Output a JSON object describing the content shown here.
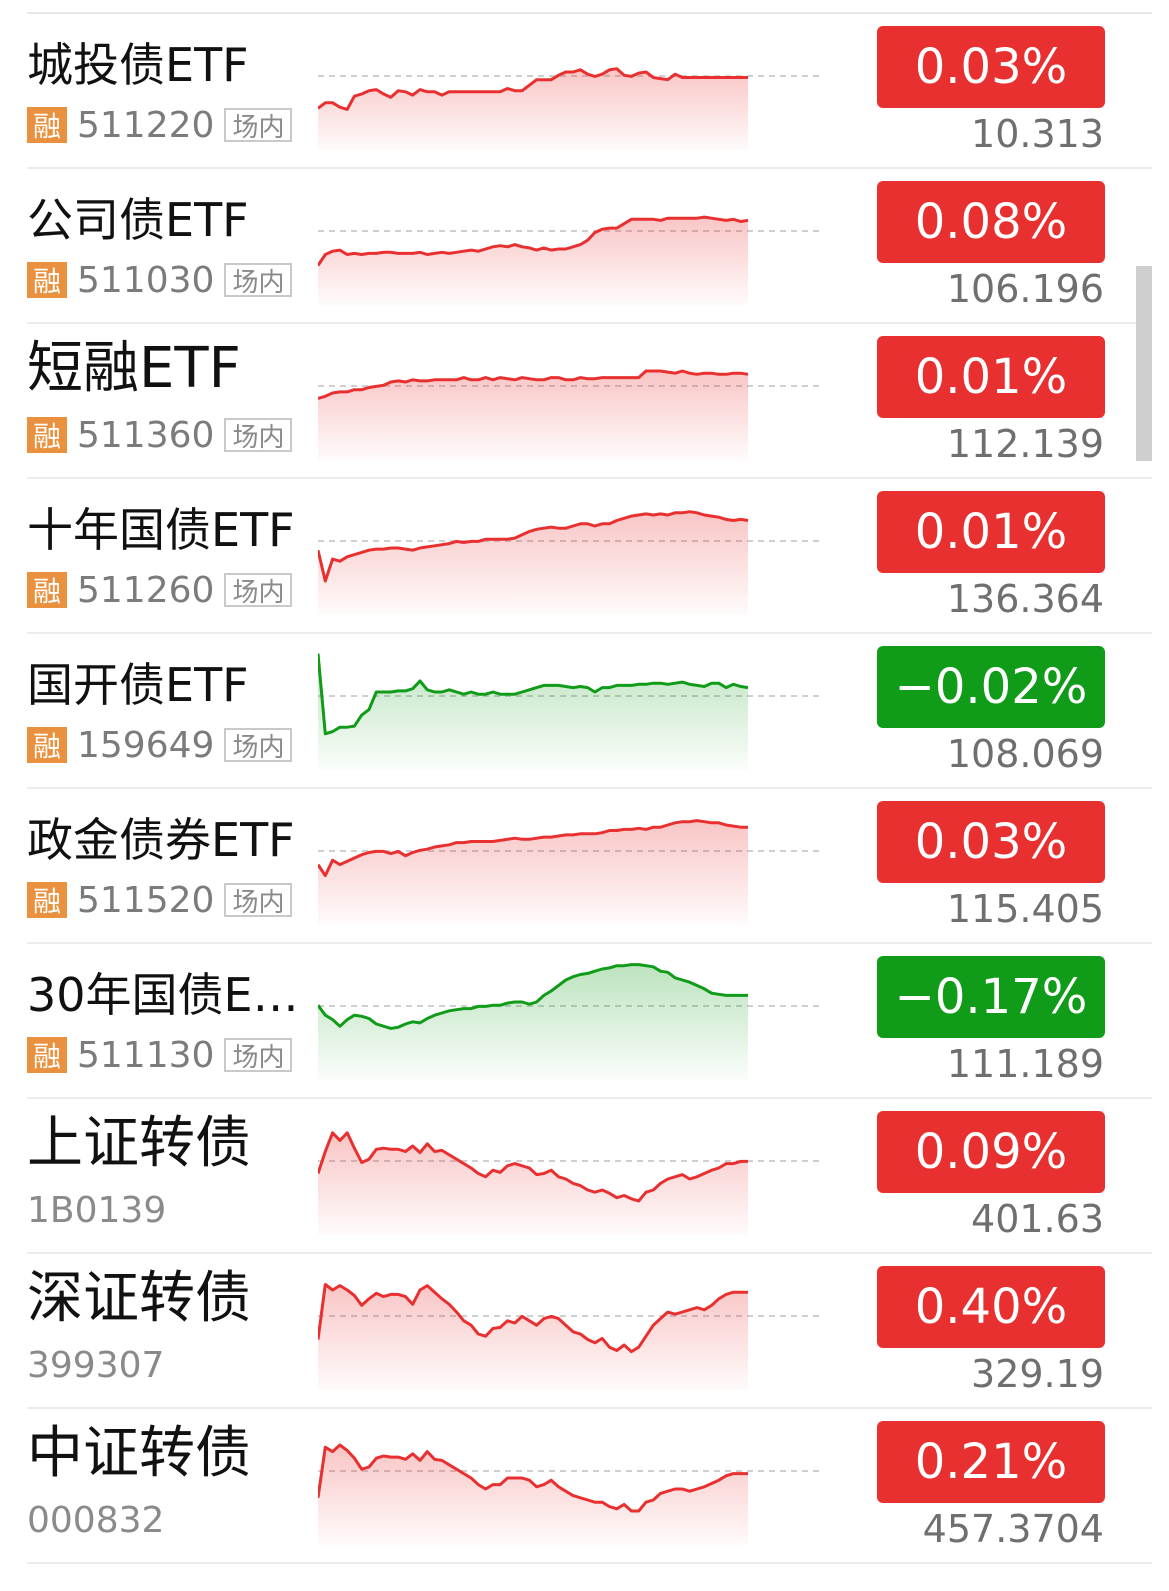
{
  "colors": {
    "up": "#e93030",
    "down": "#109b18",
    "rong_badge": "#e9913f"
  },
  "rows": [
    {
      "name": "城投债ETF",
      "margin_tag": "融",
      "code": "511220",
      "venue": "场内",
      "change": "0.03%",
      "price": "10.313",
      "trend": "up",
      "spark": [
        0.73,
        0.68,
        0.68,
        0.72,
        0.74,
        0.62,
        0.6,
        0.57,
        0.56,
        0.6,
        0.63,
        0.57,
        0.58,
        0.61,
        0.56,
        0.58,
        0.58,
        0.61,
        0.58,
        0.58,
        0.58,
        0.58,
        0.58,
        0.58,
        0.58,
        0.58,
        0.55,
        0.57,
        0.57,
        0.52,
        0.47,
        0.47,
        0.47,
        0.43,
        0.4,
        0.4,
        0.38,
        0.42,
        0.44,
        0.42,
        0.38,
        0.37,
        0.43,
        0.44,
        0.41,
        0.4,
        0.45,
        0.46,
        0.47,
        0.42,
        0.45,
        0.45,
        0.45,
        0.45,
        0.45,
        0.45,
        0.45,
        0.45,
        0.45,
        0.45
      ]
    },
    {
      "name": "公司债ETF",
      "margin_tag": "融",
      "code": "511030",
      "venue": "场内",
      "change": "0.08%",
      "price": "106.196",
      "trend": "up",
      "spark": [
        0.75,
        0.65,
        0.62,
        0.61,
        0.65,
        0.64,
        0.65,
        0.64,
        0.64,
        0.63,
        0.63,
        0.64,
        0.64,
        0.64,
        0.63,
        0.65,
        0.64,
        0.63,
        0.64,
        0.63,
        0.62,
        0.61,
        0.62,
        0.6,
        0.58,
        0.57,
        0.58,
        0.56,
        0.58,
        0.59,
        0.61,
        0.59,
        0.61,
        0.6,
        0.6,
        0.58,
        0.56,
        0.52,
        0.45,
        0.42,
        0.41,
        0.41,
        0.37,
        0.33,
        0.33,
        0.33,
        0.33,
        0.34,
        0.32,
        0.32,
        0.32,
        0.32,
        0.32,
        0.31,
        0.32,
        0.33,
        0.34,
        0.33,
        0.35,
        0.34
      ]
    },
    {
      "name": "短融ETF",
      "margin_tag": "融",
      "code": "511360",
      "venue": "场内",
      "change": "0.01%",
      "price": "112.139",
      "trend": "up",
      "spark": [
        0.55,
        0.53,
        0.5,
        0.49,
        0.49,
        0.47,
        0.47,
        0.45,
        0.44,
        0.43,
        0.4,
        0.39,
        0.4,
        0.38,
        0.39,
        0.39,
        0.38,
        0.38,
        0.38,
        0.38,
        0.36,
        0.38,
        0.38,
        0.36,
        0.38,
        0.36,
        0.37,
        0.38,
        0.36,
        0.37,
        0.38,
        0.38,
        0.36,
        0.36,
        0.38,
        0.38,
        0.36,
        0.37,
        0.37,
        0.36,
        0.36,
        0.36,
        0.36,
        0.36,
        0.36,
        0.3,
        0.3,
        0.3,
        0.31,
        0.32,
        0.3,
        0.32,
        0.33,
        0.32,
        0.32,
        0.33,
        0.33,
        0.32,
        0.32,
        0.33
      ]
    },
    {
      "name": "十年国债ETF",
      "margin_tag": "融",
      "code": "511260",
      "venue": "场内",
      "change": "0.01%",
      "price": "136.364",
      "trend": "up",
      "spark": [
        0.52,
        0.8,
        0.6,
        0.62,
        0.58,
        0.56,
        0.54,
        0.52,
        0.51,
        0.51,
        0.5,
        0.5,
        0.51,
        0.52,
        0.5,
        0.49,
        0.48,
        0.47,
        0.46,
        0.44,
        0.45,
        0.44,
        0.44,
        0.42,
        0.42,
        0.42,
        0.42,
        0.41,
        0.38,
        0.35,
        0.33,
        0.32,
        0.31,
        0.32,
        0.32,
        0.3,
        0.28,
        0.28,
        0.3,
        0.28,
        0.28,
        0.25,
        0.23,
        0.21,
        0.2,
        0.19,
        0.2,
        0.19,
        0.2,
        0.18,
        0.18,
        0.17,
        0.18,
        0.2,
        0.21,
        0.22,
        0.24,
        0.25,
        0.24,
        0.25
      ]
    },
    {
      "name": "国开债ETF",
      "margin_tag": "融",
      "code": "159649",
      "venue": "场内",
      "change": "−0.02%",
      "price": "108.069",
      "trend": "down",
      "spark": [
        0.05,
        0.78,
        0.76,
        0.72,
        0.72,
        0.71,
        0.61,
        0.56,
        0.4,
        0.4,
        0.4,
        0.39,
        0.39,
        0.37,
        0.3,
        0.38,
        0.4,
        0.4,
        0.38,
        0.4,
        0.42,
        0.4,
        0.42,
        0.42,
        0.4,
        0.42,
        0.42,
        0.42,
        0.4,
        0.38,
        0.36,
        0.34,
        0.34,
        0.34,
        0.35,
        0.36,
        0.35,
        0.36,
        0.4,
        0.36,
        0.36,
        0.34,
        0.34,
        0.34,
        0.33,
        0.33,
        0.32,
        0.32,
        0.33,
        0.32,
        0.31,
        0.33,
        0.34,
        0.35,
        0.32,
        0.32,
        0.36,
        0.33,
        0.35,
        0.36
      ]
    },
    {
      "name": "政金债券ETF",
      "margin_tag": "融",
      "code": "511520",
      "venue": "场内",
      "change": "0.03%",
      "price": "115.405",
      "trend": "up",
      "spark": [
        0.56,
        0.66,
        0.52,
        0.56,
        0.53,
        0.5,
        0.47,
        0.45,
        0.44,
        0.44,
        0.46,
        0.44,
        0.48,
        0.45,
        0.43,
        0.42,
        0.4,
        0.39,
        0.38,
        0.36,
        0.36,
        0.35,
        0.35,
        0.35,
        0.35,
        0.34,
        0.33,
        0.32,
        0.33,
        0.33,
        0.32,
        0.31,
        0.31,
        0.3,
        0.29,
        0.29,
        0.28,
        0.28,
        0.28,
        0.27,
        0.25,
        0.25,
        0.24,
        0.24,
        0.23,
        0.24,
        0.22,
        0.22,
        0.2,
        0.18,
        0.17,
        0.17,
        0.16,
        0.17,
        0.18,
        0.18,
        0.2,
        0.21,
        0.22,
        0.22
      ]
    },
    {
      "name": "30年国债ET...",
      "margin_tag": "融",
      "code": "511130",
      "venue": "场内",
      "change": "−0.17%",
      "price": "111.189",
      "trend": "down",
      "spark": [
        0.43,
        0.52,
        0.56,
        0.62,
        0.56,
        0.52,
        0.53,
        0.55,
        0.6,
        0.62,
        0.64,
        0.63,
        0.6,
        0.58,
        0.59,
        0.55,
        0.52,
        0.5,
        0.48,
        0.47,
        0.46,
        0.46,
        0.44,
        0.44,
        0.43,
        0.43,
        0.41,
        0.4,
        0.4,
        0.42,
        0.4,
        0.34,
        0.3,
        0.25,
        0.2,
        0.17,
        0.15,
        0.14,
        0.12,
        0.1,
        0.09,
        0.07,
        0.07,
        0.06,
        0.06,
        0.07,
        0.08,
        0.12,
        0.13,
        0.18,
        0.2,
        0.22,
        0.25,
        0.28,
        0.32,
        0.33,
        0.34,
        0.34,
        0.34,
        0.34
      ]
    },
    {
      "name": "上证转债",
      "margin_tag": "",
      "code": "1B0139",
      "venue": "",
      "change": "0.09%",
      "price": "401.63",
      "trend": "up",
      "spark": [
        0.55,
        0.35,
        0.18,
        0.25,
        0.18,
        0.32,
        0.45,
        0.42,
        0.33,
        0.32,
        0.33,
        0.33,
        0.35,
        0.3,
        0.36,
        0.28,
        0.35,
        0.34,
        0.38,
        0.42,
        0.46,
        0.5,
        0.55,
        0.58,
        0.52,
        0.54,
        0.48,
        0.46,
        0.48,
        0.5,
        0.56,
        0.55,
        0.52,
        0.58,
        0.6,
        0.64,
        0.66,
        0.7,
        0.72,
        0.7,
        0.73,
        0.77,
        0.75,
        0.78,
        0.8,
        0.72,
        0.7,
        0.64,
        0.6,
        0.58,
        0.56,
        0.6,
        0.58,
        0.55,
        0.52,
        0.5,
        0.46,
        0.46,
        0.44,
        0.44
      ]
    },
    {
      "name": "深证转债",
      "margin_tag": "",
      "code": "399307",
      "venue": "",
      "change": "0.40%",
      "price": "329.19",
      "trend": "up",
      "spark": [
        0.65,
        0.15,
        0.2,
        0.16,
        0.2,
        0.25,
        0.34,
        0.28,
        0.23,
        0.26,
        0.24,
        0.24,
        0.26,
        0.33,
        0.2,
        0.16,
        0.22,
        0.28,
        0.33,
        0.4,
        0.48,
        0.52,
        0.6,
        0.62,
        0.55,
        0.54,
        0.48,
        0.5,
        0.44,
        0.48,
        0.52,
        0.46,
        0.44,
        0.46,
        0.52,
        0.58,
        0.6,
        0.65,
        0.68,
        0.64,
        0.72,
        0.75,
        0.7,
        0.76,
        0.72,
        0.62,
        0.52,
        0.46,
        0.4,
        0.42,
        0.4,
        0.38,
        0.36,
        0.38,
        0.34,
        0.28,
        0.24,
        0.22,
        0.22,
        0.22
      ]
    },
    {
      "name": "中证转债",
      "margin_tag": "",
      "code": "000832",
      "venue": "",
      "change": "0.21%",
      "price": "457.3704",
      "trend": "up",
      "spark": [
        0.68,
        0.22,
        0.26,
        0.2,
        0.25,
        0.32,
        0.42,
        0.4,
        0.32,
        0.3,
        0.31,
        0.31,
        0.33,
        0.28,
        0.34,
        0.26,
        0.33,
        0.34,
        0.38,
        0.42,
        0.46,
        0.5,
        0.56,
        0.6,
        0.56,
        0.56,
        0.5,
        0.5,
        0.5,
        0.52,
        0.58,
        0.56,
        0.52,
        0.58,
        0.62,
        0.66,
        0.68,
        0.7,
        0.72,
        0.72,
        0.76,
        0.78,
        0.74,
        0.8,
        0.8,
        0.72,
        0.7,
        0.64,
        0.62,
        0.6,
        0.6,
        0.62,
        0.6,
        0.58,
        0.55,
        0.52,
        0.48,
        0.46,
        0.46,
        0.46
      ]
    }
  ]
}
